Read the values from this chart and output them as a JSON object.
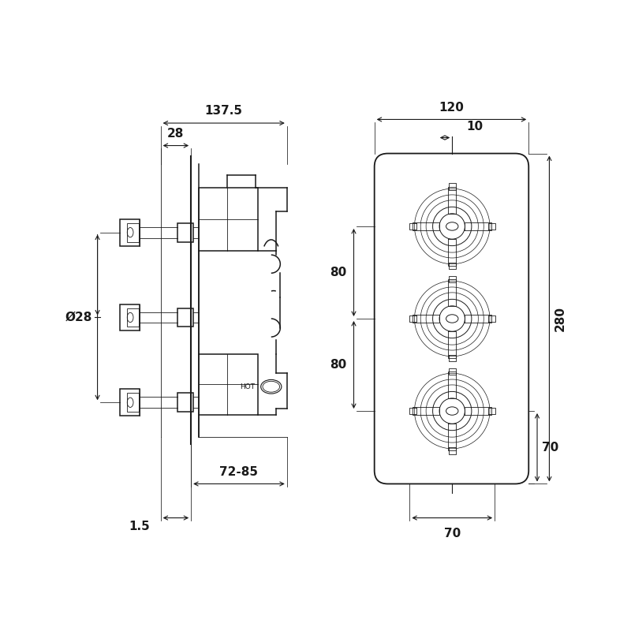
{
  "bg_color": "#ffffff",
  "line_color": "#1a1a1a",
  "lw": 1.1,
  "lw_thin": 0.6,
  "lw_dim": 0.8,
  "fontsize": 11,
  "fig_w": 8.0,
  "fig_h": 8.0
}
